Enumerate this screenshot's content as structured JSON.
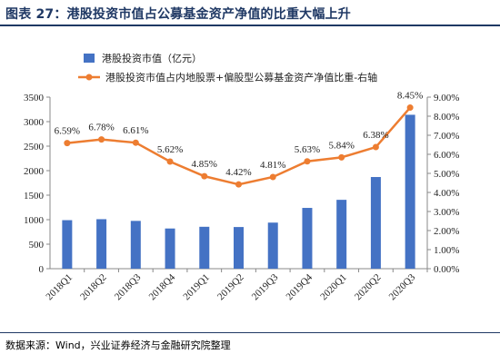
{
  "header": {
    "title": "图表 27：港股投资市值占公募基金资产净值的比重大幅上升"
  },
  "footer": {
    "source": "数据来源：Wind，兴业证券经济与金融研究院整理"
  },
  "chart_data": {
    "type": "bar",
    "categories": [
      "2018Q1",
      "2018Q2",
      "2018Q3",
      "2018Q4",
      "2019Q1",
      "2019Q2",
      "2019Q3",
      "2019Q4",
      "2020Q1",
      "2020Q2",
      "2020Q3"
    ],
    "series": [
      {
        "name": "港股投资市值（亿元）",
        "type": "bar",
        "axis": "left",
        "color": "#4472c4",
        "values": [
          990,
          1010,
          975,
          820,
          855,
          850,
          940,
          1240,
          1405,
          1870,
          3140
        ]
      },
      {
        "name": "港股投资市值占内地股票+偏股型公募基金资产净值比重-右轴",
        "type": "line",
        "axis": "right",
        "color": "#ed7d31",
        "values": [
          6.59,
          6.78,
          6.61,
          5.62,
          4.85,
          4.42,
          4.81,
          5.63,
          5.84,
          6.38,
          8.45
        ],
        "labels": [
          "6.59%",
          "6.78%",
          "6.61%",
          "5.62%",
          "4.85%",
          "4.42%",
          "4.81%",
          "5.63%",
          "5.84%",
          "6.38%",
          "8.45%"
        ]
      }
    ],
    "y_left": {
      "ylim": [
        0,
        3500
      ],
      "ticks": [
        "0",
        "500",
        "1000",
        "1500",
        "2000",
        "2500",
        "3000",
        "3500"
      ]
    },
    "y_right": {
      "ylim": [
        0,
        9
      ],
      "ticks": [
        "0.00%",
        "1.00%",
        "2.00%",
        "3.00%",
        "4.00%",
        "5.00%",
        "6.00%",
        "7.00%",
        "8.00%",
        "9.00%"
      ]
    },
    "legend_position": "top-left",
    "grid": false
  }
}
